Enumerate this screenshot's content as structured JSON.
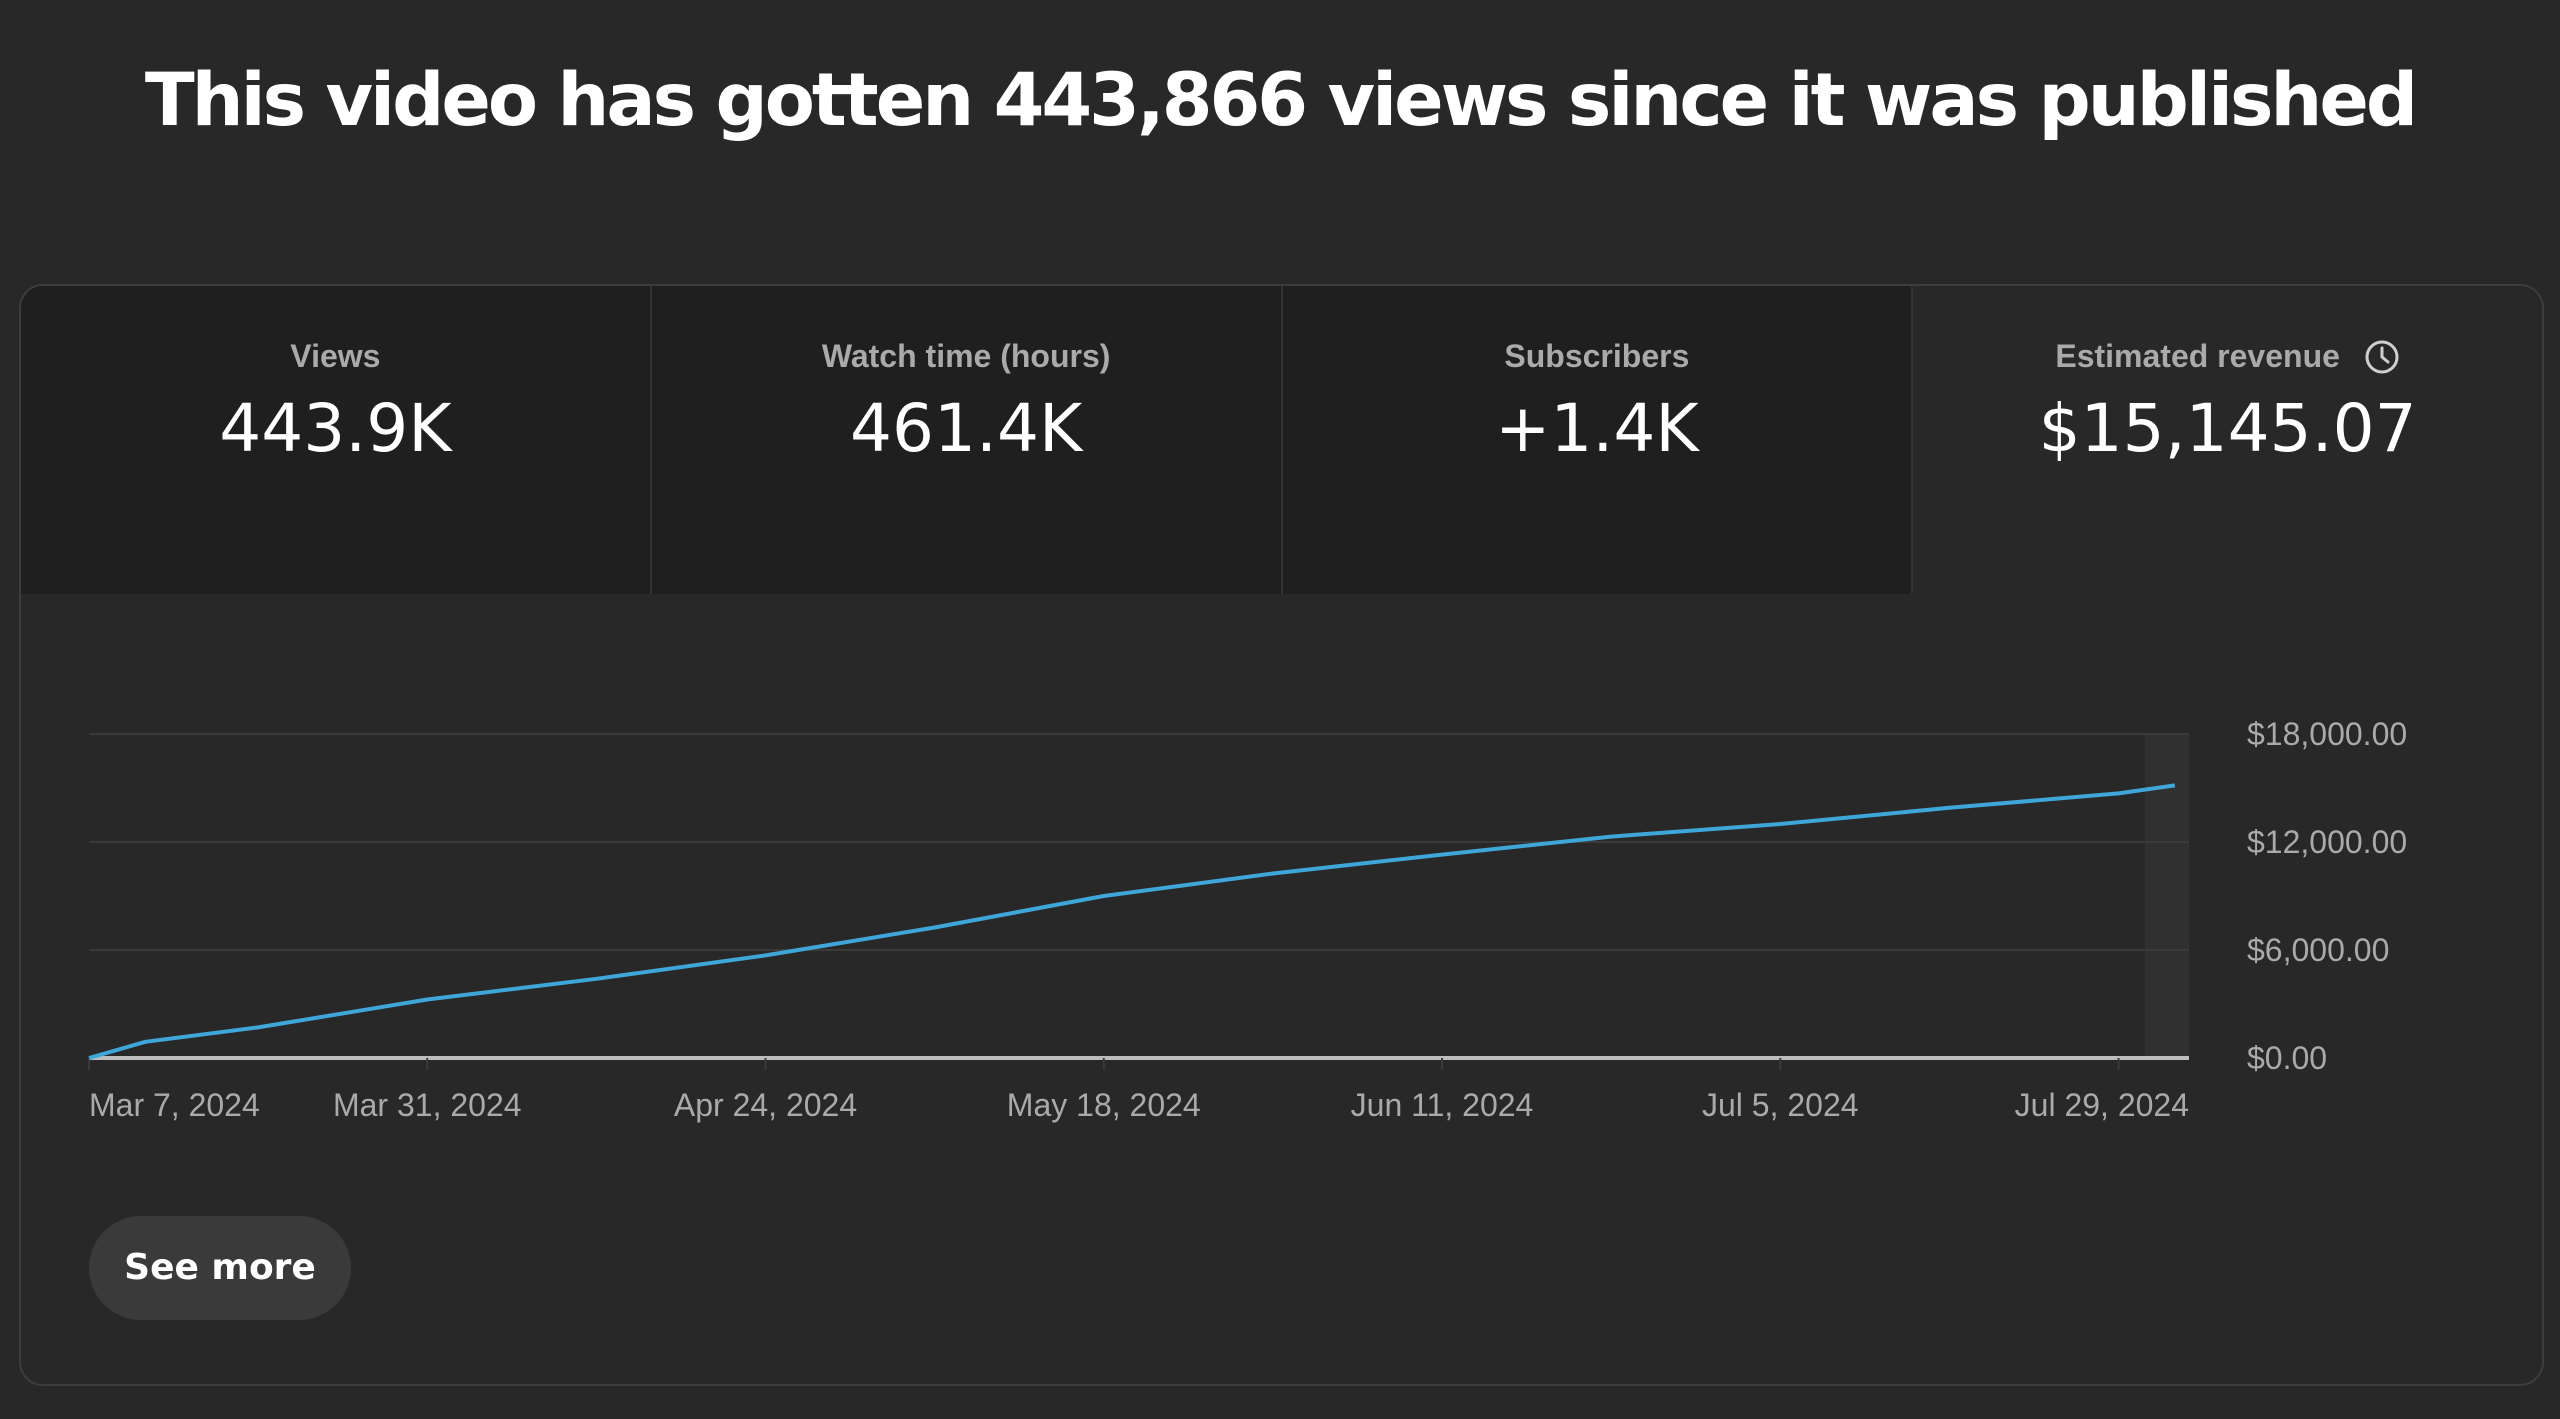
{
  "headline": "This video has gotten 443,866 views since it was published",
  "metrics": [
    {
      "label": "Views",
      "value": "443.9K"
    },
    {
      "label": "Watch time (hours)",
      "value": "461.4K"
    },
    {
      "label": "Subscribers",
      "value": "+1.4K"
    },
    {
      "label": "Estimated revenue",
      "value": "$15,145.07",
      "icon": "clock-icon",
      "selected": true
    }
  ],
  "see_more_label": "See more",
  "colors": {
    "background": "#282828",
    "line": "#3ea6d8",
    "grid": "#3a3a3a",
    "baseline": "#bdbdbd"
  },
  "chart_data": {
    "type": "line",
    "title": "",
    "xlabel": "",
    "ylabel": "",
    "y_axis_side": "right",
    "yticks": [
      {
        "value": 0,
        "label": "$0.00"
      },
      {
        "value": 6000,
        "label": "$6,000.00"
      },
      {
        "value": 12000,
        "label": "$12,000.00"
      },
      {
        "value": 18000,
        "label": "$18,000.00"
      }
    ],
    "ylim": [
      0,
      18000
    ],
    "xlim": [
      "2024-03-07",
      "2024-08-03"
    ],
    "xticks": [
      {
        "value": "2024-03-07",
        "label": "Mar 7, 2024"
      },
      {
        "value": "2024-03-31",
        "label": "Mar 31, 2024"
      },
      {
        "value": "2024-04-24",
        "label": "Apr 24, 2024"
      },
      {
        "value": "2024-05-18",
        "label": "May 18, 2024"
      },
      {
        "value": "2024-06-11",
        "label": "Jun 11, 2024"
      },
      {
        "value": "2024-07-05",
        "label": "Jul 5, 2024"
      },
      {
        "value": "2024-07-29",
        "label": "Jul 29, 2024"
      }
    ],
    "grid": true,
    "series": [
      {
        "x": [
          "2024-03-07",
          "2024-03-11",
          "2024-03-19",
          "2024-03-31",
          "2024-04-12",
          "2024-04-24",
          "2024-05-06",
          "2024-05-18",
          "2024-05-30",
          "2024-06-11",
          "2024-06-23",
          "2024-07-05",
          "2024-07-17",
          "2024-07-29",
          "2024-08-02"
        ],
        "y": [
          0,
          900,
          1700,
          3250,
          4400,
          5700,
          7250,
          9000,
          10250,
          11300,
          12300,
          13000,
          13900,
          14700,
          15145
        ]
      }
    ]
  }
}
